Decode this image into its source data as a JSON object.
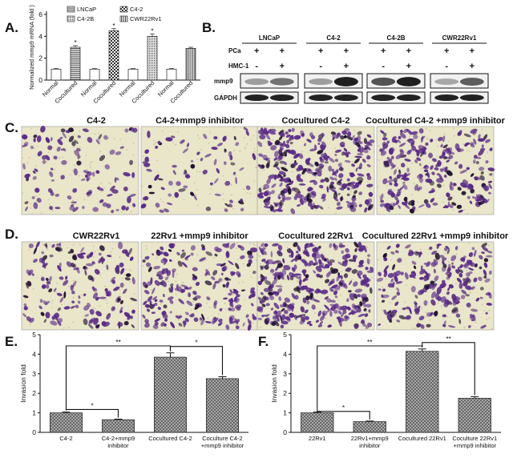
{
  "panel_labels": [
    "A.",
    "B.",
    "C.",
    "D.",
    "E.",
    "F."
  ],
  "chart_data": [
    {
      "id": "A",
      "type": "bar",
      "ylabel": "Normalized mmp9 mRNA (fold )",
      "ylim": [
        0,
        6
      ],
      "yticks": [
        0,
        2,
        4,
        6
      ],
      "categories": [
        "Normal",
        "Cocultured",
        "Normal",
        "Cocultured",
        "Normal",
        "Cocultured",
        "Normal",
        "Cocultured"
      ],
      "values": [
        1.0,
        3.0,
        1.0,
        4.5,
        1.0,
        4.0,
        1.0,
        2.9
      ],
      "errors": [
        0.05,
        0.15,
        0.05,
        0.2,
        0.05,
        0.2,
        0.05,
        0.1
      ],
      "significance": [
        "",
        "*",
        "",
        "*",
        "",
        "*",
        "",
        ""
      ],
      "legend_entries": [
        "LNCaP",
        "C4-2",
        "C4-2B",
        "CWR22Rv1"
      ],
      "legend_position": "top"
    },
    {
      "id": "E",
      "type": "bar",
      "ylabel": "Invasion fold",
      "ylim": [
        0,
        5
      ],
      "yticks": [
        0,
        1,
        2,
        3,
        4,
        5
      ],
      "categories": [
        "C4-2",
        "C4-2+mmp9\ninhibitor",
        "Cocultured C4-2",
        "Cocculture C4-2 C4-2\n+mmp9 inhibitor"
      ],
      "category_labels": [
        "C4-2",
        "C4-2+mmp9",
        "inhibitor",
        "Cocultured C4-2",
        "Coculture C4-2",
        "+mmp9 inhibitor"
      ],
      "values": [
        1.0,
        0.65,
        3.85,
        2.75
      ],
      "errors": [
        0.04,
        0.03,
        0.22,
        0.1
      ],
      "brackets": [
        {
          "from": 0,
          "to": 1,
          "label": "*"
        },
        {
          "from": 0,
          "to": 2,
          "label": "**"
        },
        {
          "from": 2,
          "to": 3,
          "label": "*"
        }
      ]
    },
    {
      "id": "F",
      "type": "bar",
      "ylabel": "Invasion fold",
      "ylim": [
        0,
        5
      ],
      "yticks": [
        0,
        1,
        2,
        3,
        4,
        5
      ],
      "category_labels": [
        "22Rv1",
        "22Rv1+mmp9",
        "inhibitor",
        "Cocultured 22Rv1",
        "Coculture 22Rv1",
        "+mmp9 inhibitor"
      ],
      "values": [
        1.0,
        0.55,
        4.15,
        1.75
      ],
      "errors": [
        0.04,
        0.03,
        0.12,
        0.08
      ],
      "brackets": [
        {
          "from": 0,
          "to": 1,
          "label": "*"
        },
        {
          "from": 0,
          "to": 2,
          "label": "**"
        },
        {
          "from": 2,
          "to": 3,
          "label": "**"
        }
      ]
    }
  ],
  "blot": {
    "groups": [
      "LNCaP",
      "C4-2",
      "C4-2B",
      "CWR22Rv1"
    ],
    "row_labels": [
      "PCa",
      "HMC-1",
      "mmp9",
      "GAPDH"
    ],
    "pca_signs": [
      "+",
      "+"
    ],
    "hmc_signs": [
      "-",
      "+"
    ],
    "mmp9_intensity": [
      [
        0.35,
        0.55
      ],
      [
        0.35,
        0.95
      ],
      [
        0.7,
        0.95
      ],
      [
        0.3,
        0.65
      ]
    ]
  },
  "micrographs_C": [
    "C4-2",
    "C4-2+mmp9 inhibitor",
    "Cocultured C4-2",
    "Cocultured C4-2 +mmp9 inhibitor"
  ],
  "micrographs_D": [
    "CWR22Rv1",
    "22Rv1 +mmp9 inhibitor",
    "Cocultured 22Rv1",
    "Cocultured 22Rv1 +mmp9 inhibitor"
  ],
  "colors": {
    "cell": "#5a2a8a",
    "background": "#e9e6c9"
  }
}
